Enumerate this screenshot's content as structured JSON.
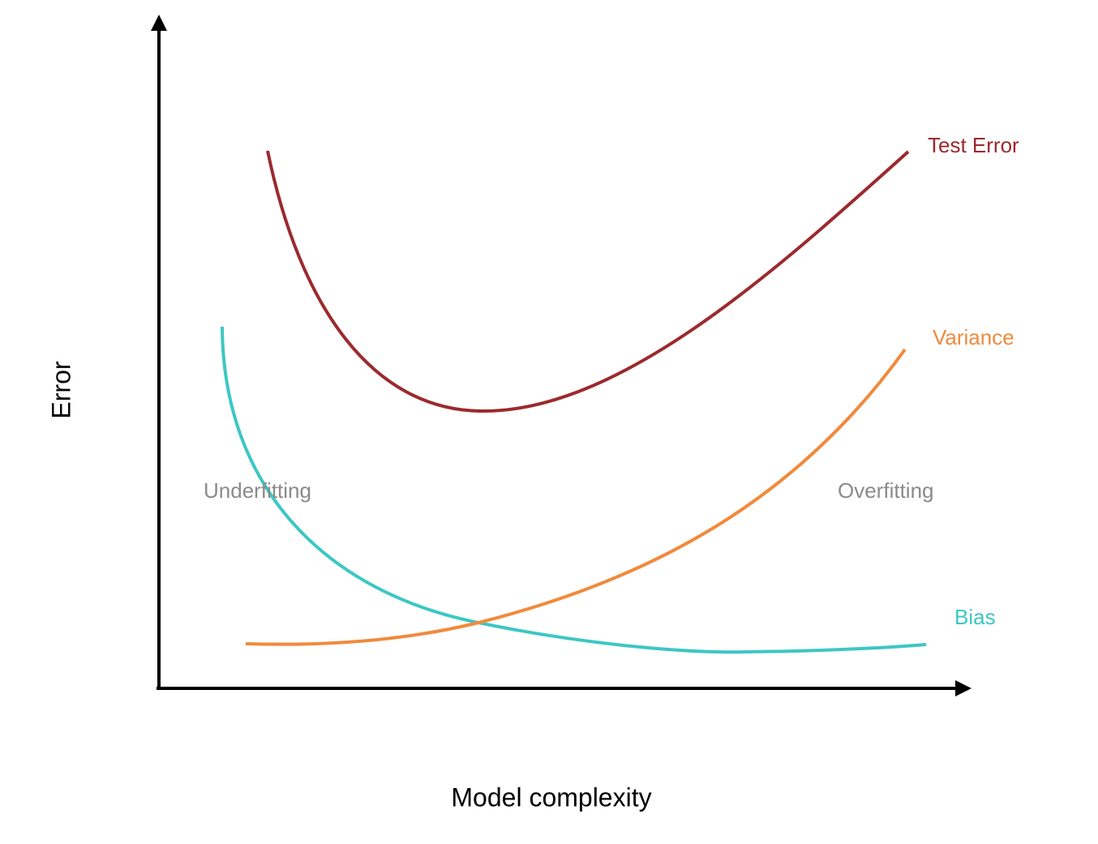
{
  "axes": {
    "x_label": "Model complexity",
    "y_label": "Error"
  },
  "curves": [
    {
      "label": "Test Error"
    },
    {
      "label": "Variance"
    },
    {
      "label": "Bias"
    }
  ],
  "regions": [
    {
      "label": "Underfitting"
    },
    {
      "label": "Overfitting"
    }
  ]
}
